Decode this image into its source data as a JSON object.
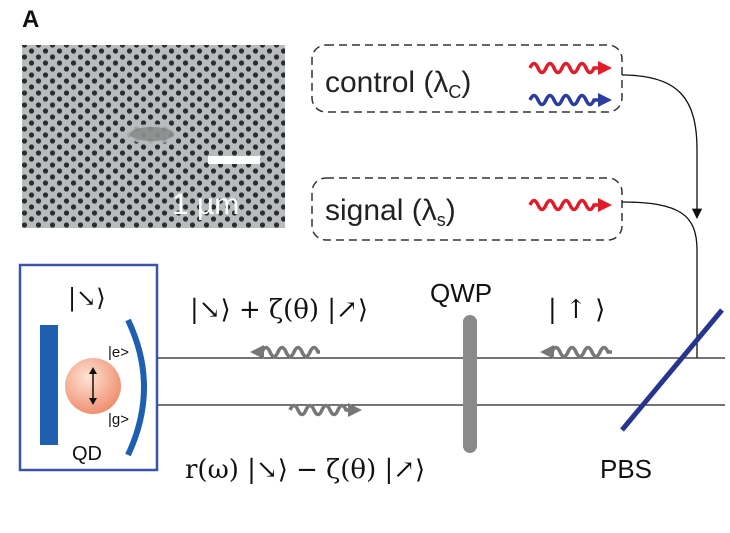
{
  "panel_label": "A",
  "sem_image": {
    "scale_bar_label": "1 µm"
  },
  "control": {
    "label": "control (λ",
    "subscript": "C",
    "close": ")"
  },
  "signal": {
    "label": "signal (λ",
    "subscript": "s",
    "close": ")"
  },
  "qd_box": {
    "state": "|↘⟩",
    "excited": "|e>",
    "ground": "|g>",
    "label": "QD"
  },
  "upper_state": "|↘⟩ + ζ(θ) |↗⟩",
  "lower_state": "r(ω) |↘⟩ − ζ(θ) |↗⟩",
  "qwp_label": "QWP",
  "input_state": "| ↑ ⟩",
  "pbs_label": "PBS"
}
